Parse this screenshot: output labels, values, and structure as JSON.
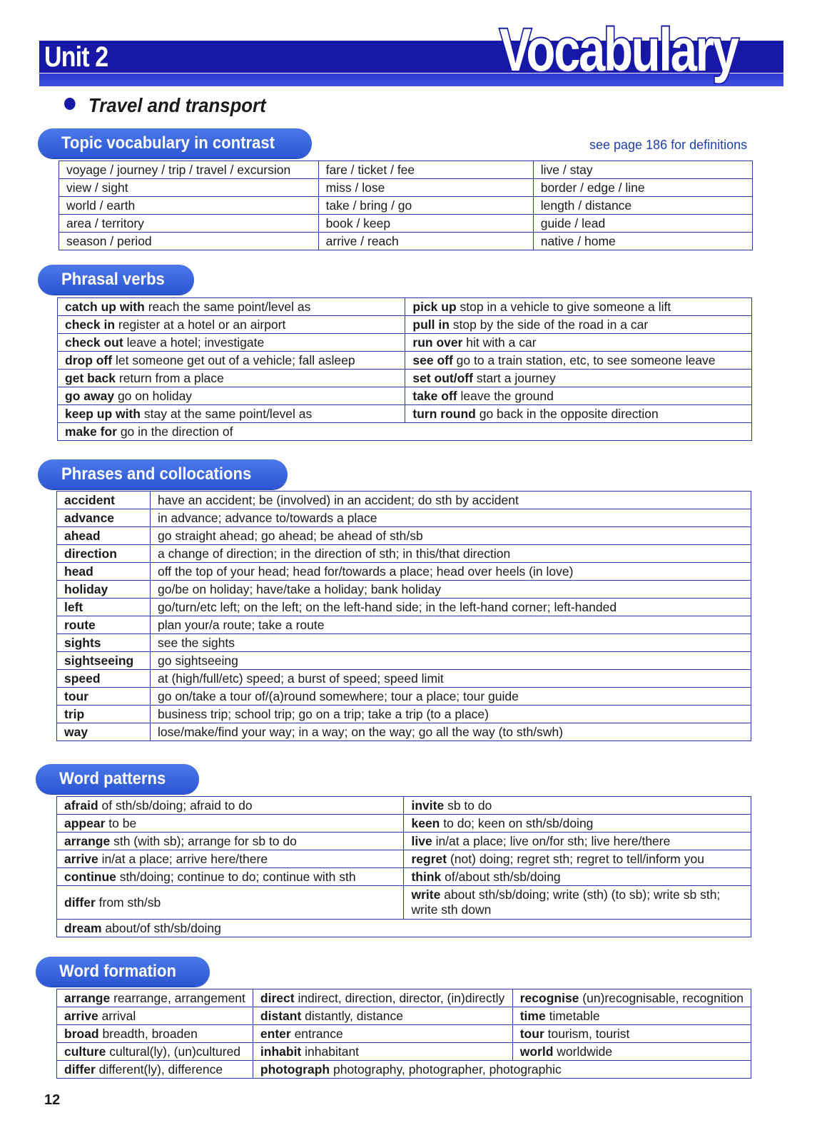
{
  "header": {
    "unit": "Unit 2",
    "title": "Vocabulary",
    "accent_color": "#1818a8"
  },
  "subtitle": "Travel and transport",
  "topic_vocab": {
    "heading": "Topic vocabulary in contrast",
    "note": "see page 186 for definitions",
    "rows": [
      [
        "voyage / journey / trip / travel / excursion",
        "fare / ticket / fee",
        "live / stay"
      ],
      [
        "view / sight",
        "miss / lose",
        "border / edge / line"
      ],
      [
        "world / earth",
        "take / bring / go",
        "length / distance"
      ],
      [
        "area / territory",
        "book / keep",
        "guide / lead"
      ],
      [
        "season / period",
        "arrive / reach",
        "native / home"
      ]
    ]
  },
  "phrasal_verbs": {
    "heading": "Phrasal verbs",
    "rows": [
      [
        {
          "term": "catch up with",
          "def": "reach the same point/level as"
        },
        {
          "term": "pick up",
          "def": "stop in a vehicle to give someone a lift"
        }
      ],
      [
        {
          "term": "check in",
          "def": "register at a hotel or an airport"
        },
        {
          "term": "pull in",
          "def": "stop by the side of the road in a car"
        }
      ],
      [
        {
          "term": "check out",
          "def": "leave a hotel; investigate"
        },
        {
          "term": "run over",
          "def": "hit with a car"
        }
      ],
      [
        {
          "term": "drop off",
          "def": "let someone get out of a vehicle; fall asleep"
        },
        {
          "term": "see off",
          "def": "go to a train station, etc, to see someone leave"
        }
      ],
      [
        {
          "term": "get back",
          "def": "return from a place"
        },
        {
          "term": "set out/off",
          "def": "start a journey"
        }
      ],
      [
        {
          "term": "go away",
          "def": "go on holiday"
        },
        {
          "term": "take off",
          "def": "leave the ground"
        }
      ],
      [
        {
          "term": "keep up with",
          "def": "stay at the same point/level as"
        },
        {
          "term": "turn round",
          "def": "go back in the opposite direction"
        }
      ],
      [
        {
          "term": "make for",
          "def": "go in the direction of"
        }
      ]
    ]
  },
  "phrases": {
    "heading": "Phrases and collocations",
    "rows": [
      {
        "term": "accident",
        "def": "have an accident; be (involved) in an accident; do sth by accident"
      },
      {
        "term": "advance",
        "def": "in advance; advance to/towards a place"
      },
      {
        "term": "ahead",
        "def": "go straight ahead; go ahead; be ahead of sth/sb"
      },
      {
        "term": "direction",
        "def": "a change of direction; in the direction of sth; in this/that direction"
      },
      {
        "term": "head",
        "def": "off the top of your head; head for/towards a place; head over heels (in love)"
      },
      {
        "term": "holiday",
        "def": "go/be on holiday; have/take a holiday; bank holiday"
      },
      {
        "term": "left",
        "def": "go/turn/etc left; on the left; on the left-hand side; in the left-hand corner; left-handed"
      },
      {
        "term": "route",
        "def": "plan your/a route; take a route"
      },
      {
        "term": "sights",
        "def": "see the sights"
      },
      {
        "term": "sightseeing",
        "def": "go sightseeing"
      },
      {
        "term": "speed",
        "def": "at (high/full/etc) speed; a burst of speed; speed limit"
      },
      {
        "term": "tour",
        "def": "go on/take a tour of/(a)round somewhere; tour a place; tour guide"
      },
      {
        "term": "trip",
        "def": "business trip; school trip; go on a trip; take a trip (to a place)"
      },
      {
        "term": "way",
        "def": "lose/make/find your way; in a way; on the way; go all the way (to sth/swh)"
      }
    ]
  },
  "word_patterns": {
    "heading": "Word patterns",
    "rows": [
      [
        {
          "term": "afraid",
          "def": "of sth/sb/doing; afraid to do"
        },
        {
          "term": "invite",
          "def": "sb to do"
        }
      ],
      [
        {
          "term": "appear",
          "def": "to be"
        },
        {
          "term": "keen",
          "def": "to do; keen on sth/sb/doing"
        }
      ],
      [
        {
          "term": "arrange",
          "def": "sth (with sb); arrange for sb to do"
        },
        {
          "term": "live",
          "def": "in/at a place; live on/for sth; live here/there"
        }
      ],
      [
        {
          "term": "arrive",
          "def": "in/at a place; arrive here/there"
        },
        {
          "term": "regret",
          "def": "(not) doing; regret sth; regret to tell/inform you"
        }
      ],
      [
        {
          "term": "continue",
          "def": "sth/doing; continue to do; continue with sth"
        },
        {
          "term": "think",
          "def": "of/about sth/sb/doing"
        }
      ],
      [
        {
          "term": "differ",
          "def": "from sth/sb"
        },
        {
          "term": "write",
          "def": "about sth/sb/doing; write (sth) (to sb); write sb sth; write sth down"
        }
      ],
      [
        {
          "term": "dream",
          "def": "about/of sth/sb/doing"
        }
      ]
    ]
  },
  "word_formation": {
    "heading": "Word formation",
    "rows": [
      [
        {
          "term": "arrange",
          "def": "rearrange, arrangement"
        },
        {
          "term": "direct",
          "def": "indirect, direction, director, (in)directly"
        },
        {
          "term": "recognise",
          "def": "(un)recognisable, recognition"
        }
      ],
      [
        {
          "term": "arrive",
          "def": "arrival"
        },
        {
          "term": "distant",
          "def": "distantly, distance"
        },
        {
          "term": "time",
          "def": "timetable"
        }
      ],
      [
        {
          "term": "broad",
          "def": "breadth, broaden"
        },
        {
          "term": "enter",
          "def": "entrance"
        },
        {
          "term": "tour",
          "def": "tourism, tourist"
        }
      ],
      [
        {
          "term": "culture",
          "def": "cultural(ly), (un)cultured"
        },
        {
          "term": "inhabit",
          "def": "inhabitant"
        },
        {
          "term": "world",
          "def": "worldwide"
        }
      ],
      [
        {
          "term": "differ",
          "def": "different(ly), difference"
        },
        {
          "term": "photograph",
          "def": "photography, photographer, photographic"
        }
      ]
    ]
  },
  "page_number": "12"
}
